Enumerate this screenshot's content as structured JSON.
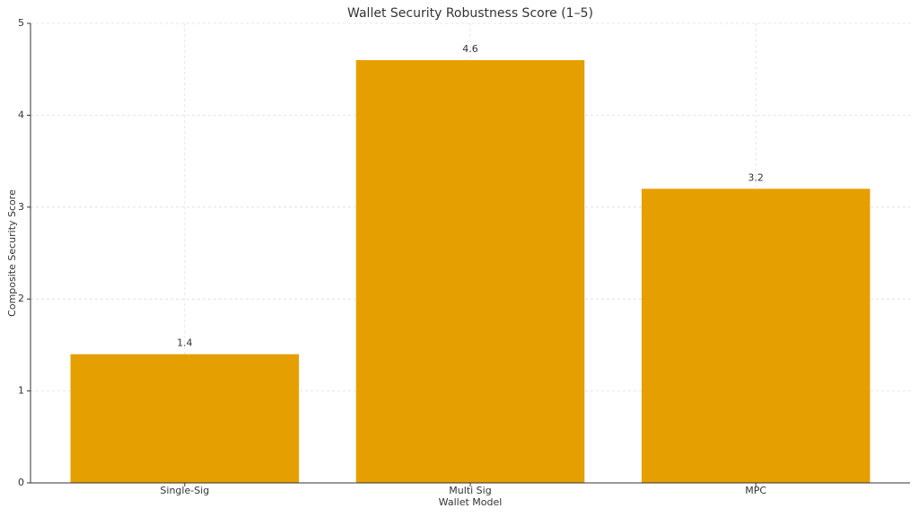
{
  "chart_data": {
    "type": "bar",
    "title": "Wallet Security Robustness Score (1–5)",
    "x_label": "Wallet Model",
    "y_label": "Composite Security Score",
    "categories": [
      "Single-Sig",
      "Multi Sig",
      "MPC"
    ],
    "values": [
      1.4,
      4.6,
      3.2
    ],
    "color": "#E69F00",
    "ylim": [
      0,
      5
    ],
    "yticks": [
      0,
      1,
      2,
      3,
      4,
      5
    ],
    "grid": true
  }
}
